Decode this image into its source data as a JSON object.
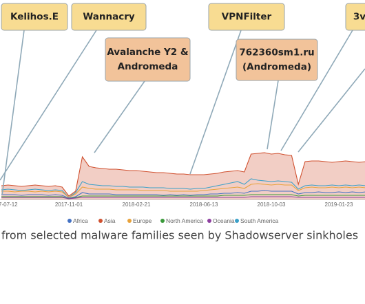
{
  "chart_data": {
    "type": "area",
    "caption": "from selected malware families seen by Shadowserver sinkholes",
    "categories": [
      null,
      "7-07-12",
      null,
      null,
      null,
      null,
      null,
      null,
      null,
      null,
      "2017-11-01",
      null,
      null,
      null,
      null,
      null,
      null,
      null,
      null,
      null,
      "2018-02-21",
      null,
      null,
      null,
      null,
      null,
      null,
      null,
      null,
      null,
      "2018-06-13",
      null,
      null,
      null,
      null,
      null,
      null,
      null,
      null,
      null,
      "2018-10-03",
      null,
      null,
      null,
      null,
      null,
      null,
      null,
      null,
      null,
      "2019-01-23",
      null,
      null,
      null,
      null
    ],
    "ylim": [
      0,
      100
    ],
    "series": [
      {
        "name": "Africa",
        "color": "#4472c4",
        "values": [
          7,
          7,
          7,
          6,
          7,
          7,
          7,
          6,
          7,
          6,
          2,
          4,
          10,
          8,
          8,
          8,
          8,
          7,
          7,
          7,
          7,
          7,
          7,
          7,
          6,
          7,
          6,
          7,
          6,
          7,
          7,
          8,
          8,
          9,
          9,
          10,
          9,
          12,
          12,
          13,
          12,
          12,
          12,
          12,
          8,
          10,
          10,
          11,
          10,
          10,
          11,
          10,
          11,
          10,
          11
        ]
      },
      {
        "name": "Asia",
        "color": "#d0502f",
        "values": [
          20,
          21,
          20,
          19,
          20,
          21,
          20,
          19,
          20,
          18,
          5,
          12,
          62,
          48,
          46,
          45,
          44,
          44,
          43,
          42,
          42,
          41,
          40,
          39,
          39,
          38,
          37,
          37,
          36,
          36,
          36,
          37,
          38,
          40,
          41,
          42,
          40,
          66,
          67,
          68,
          66,
          67,
          65,
          64,
          22,
          55,
          56,
          56,
          55,
          54,
          55,
          56,
          55,
          54,
          55
        ]
      },
      {
        "name": "Europe",
        "color": "#e8a23a",
        "values": [
          12,
          12,
          11,
          12,
          12,
          11,
          12,
          11,
          12,
          11,
          3,
          8,
          18,
          16,
          15,
          15,
          15,
          14,
          14,
          14,
          14,
          13,
          13,
          13,
          13,
          12,
          12,
          12,
          12,
          12,
          13,
          14,
          15,
          16,
          17,
          18,
          16,
          22,
          23,
          22,
          21,
          22,
          21,
          21,
          13,
          17,
          18,
          17,
          17,
          18,
          17,
          18,
          17,
          18,
          17
        ]
      },
      {
        "name": "North America",
        "color": "#3a9a3a",
        "values": [
          4,
          4,
          4,
          4,
          4,
          4,
          4,
          4,
          4,
          4,
          1,
          3,
          5,
          5,
          5,
          5,
          5,
          5,
          5,
          5,
          5,
          5,
          5,
          5,
          5,
          5,
          5,
          5,
          5,
          5,
          5,
          5,
          5,
          6,
          6,
          6,
          6,
          7,
          7,
          7,
          7,
          7,
          7,
          7,
          5,
          6,
          6,
          6,
          6,
          6,
          6,
          6,
          6,
          6,
          6
        ]
      },
      {
        "name": "Oceania",
        "color": "#8e3fa0",
        "values": [
          3,
          3,
          3,
          3,
          3,
          3,
          3,
          3,
          3,
          3,
          1,
          2,
          3,
          3,
          3,
          3,
          3,
          3,
          3,
          3,
          3,
          3,
          3,
          3,
          3,
          3,
          3,
          3,
          3,
          3,
          3,
          3,
          3,
          3,
          3,
          3,
          3,
          4,
          4,
          4,
          4,
          4,
          4,
          4,
          3,
          3,
          3,
          3,
          3,
          3,
          3,
          3,
          3,
          3,
          3
        ]
      },
      {
        "name": "South America",
        "color": "#3aa0c8",
        "values": [
          14,
          15,
          14,
          13,
          14,
          15,
          14,
          13,
          14,
          13,
          3,
          10,
          26,
          22,
          21,
          20,
          20,
          19,
          19,
          18,
          18,
          18,
          17,
          17,
          17,
          16,
          16,
          16,
          15,
          16,
          16,
          18,
          20,
          22,
          24,
          26,
          22,
          30,
          28,
          27,
          26,
          27,
          26,
          25,
          15,
          20,
          21,
          20,
          20,
          21,
          20,
          21,
          20,
          21,
          20
        ]
      }
    ],
    "annotations": [
      {
        "lines": [
          "Kelihos.E"
        ],
        "kind": "yellow"
      },
      {
        "lines": [
          "Wannacry"
        ],
        "kind": "yellow"
      },
      {
        "lines": [
          "VPNFilter"
        ],
        "kind": "yellow"
      },
      {
        "lines": [
          "3v"
        ],
        "kind": "yellow"
      },
      {
        "lines": [
          "Avalanche Y2 &",
          "Andromeda"
        ],
        "kind": "orange"
      },
      {
        "lines": [
          "762360sm1.ru",
          "(Andromeda)"
        ],
        "kind": "orange"
      }
    ]
  }
}
